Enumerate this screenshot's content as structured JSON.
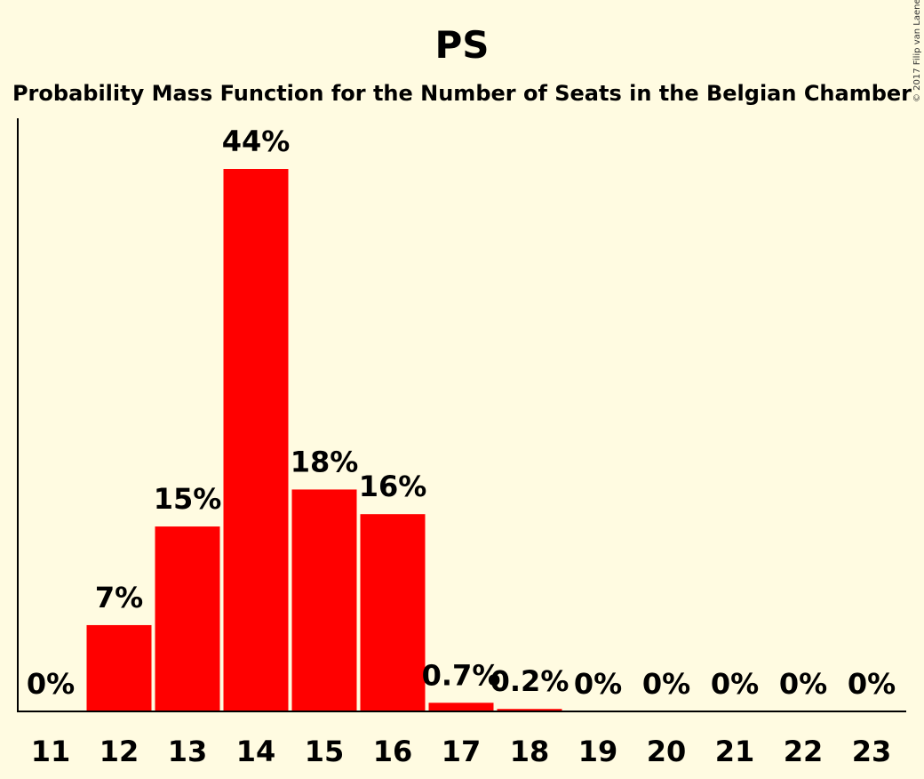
{
  "chart_data": {
    "type": "bar",
    "title": "PS",
    "subtitle": "Probability Mass Function for the Number of Seats in the Belgian Chamber",
    "categories": [
      "11",
      "12",
      "13",
      "14",
      "15",
      "16",
      "17",
      "18",
      "19",
      "20",
      "21",
      "22",
      "23"
    ],
    "values": [
      0,
      7,
      15,
      44,
      18,
      16,
      0.7,
      0.2,
      0,
      0,
      0,
      0,
      0
    ],
    "value_labels": [
      "0%",
      "7%",
      "15%",
      "44%",
      "18%",
      "16%",
      "0.7%",
      "0.2%",
      "0%",
      "0%",
      "0%",
      "0%",
      "0%"
    ],
    "bar_color": "#ff0000",
    "ylim": [
      0,
      44
    ],
    "grid": false,
    "xlabel": "",
    "ylabel": ""
  },
  "copyright": "© 2017 Filip van Laenen",
  "colors": {
    "background": "#fffbe1",
    "bar": "#ff0000",
    "axis": "#000000"
  }
}
